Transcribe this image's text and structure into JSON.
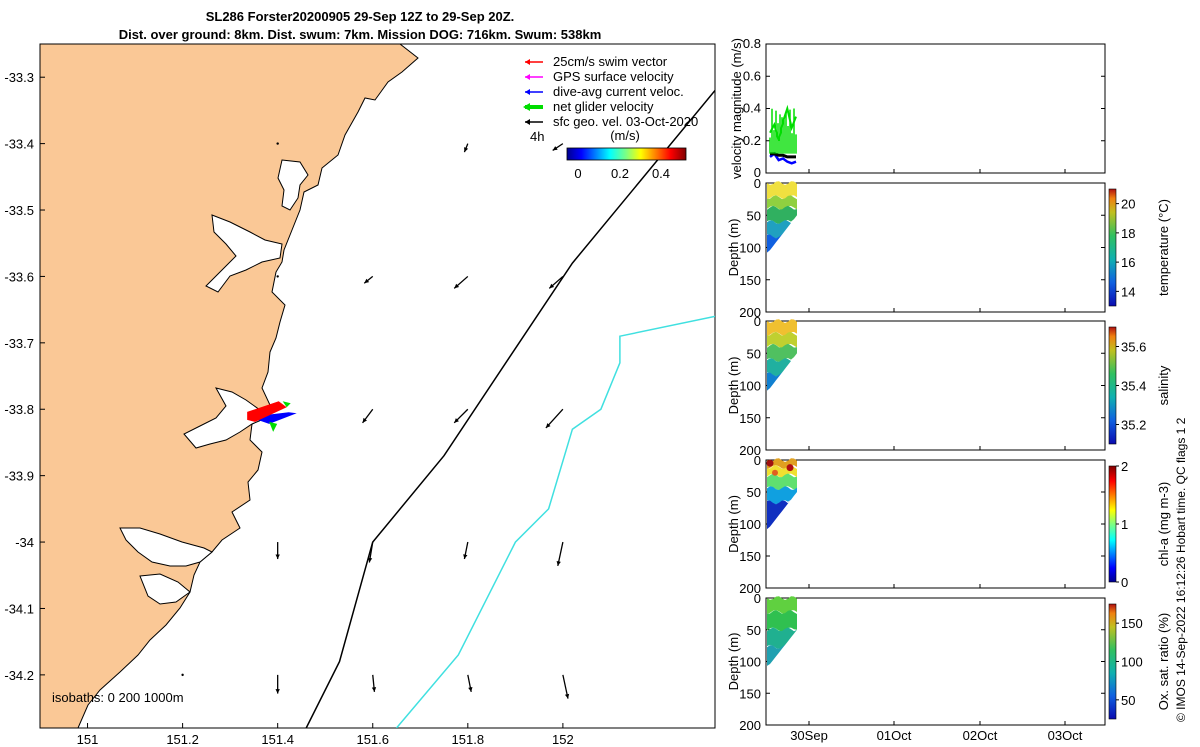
{
  "header": {
    "title_line1": "SL286 Forster20200905 29-Sep 12Z to 29-Sep 20Z.",
    "title_line2": "Dist. over ground: 8km. Dist. swum: 7km. Mission DOG: 716km. Swum: 538km"
  },
  "colors": {
    "land": "#FAC896",
    "swim_vector": "#FF0000",
    "gps_velocity": "#FF00FF",
    "dive_avg_current": "#0000FF",
    "net_glider_velocity": "#00DD00",
    "sfc_geo_vel": "#000000",
    "isobath_200": "#000000",
    "isobath_1000": "#40E0E0"
  },
  "map": {
    "legend": [
      {
        "label": "25cm/s swim vector",
        "color": "#FF0000"
      },
      {
        "label": "GPS surface velocity",
        "color": "#FF00FF"
      },
      {
        "label": "dive-avg current veloc.",
        "color": "#0000FF"
      },
      {
        "label": "net glider velocity",
        "color": "#00DD00"
      },
      {
        "label": "sfc geo. vel. 03-Oct-2020",
        "color": "#000000"
      }
    ],
    "time_label": "4h",
    "colorbar_label": "(m/s)",
    "colorbar_ticks": [
      "0",
      "0.2",
      "0.4"
    ],
    "isobaths_label": "isobaths: 0   200  1000m",
    "lon_ticks": [
      "151",
      "151.2",
      "151.4",
      "151.6",
      "151.8",
      "152"
    ],
    "lat_ticks": [
      "-33.3",
      "-33.4",
      "-33.5",
      "-33.6",
      "-33.7",
      "-33.8",
      "-33.9",
      "-34",
      "-34.1",
      "-34.2"
    ]
  },
  "chart_data": [
    {
      "type": "scatter",
      "name": "map",
      "xlim": [
        150.9,
        152.32
      ],
      "ylim": [
        -34.28,
        -33.25
      ],
      "grid": false,
      "legend_position": "top-right",
      "glider_track": [
        [
          151.34,
          -33.81
        ],
        [
          151.44,
          -33.8
        ]
      ],
      "current_arrows": [
        {
          "lon": 151.4,
          "lat": -33.4,
          "u": 0.0,
          "v": 0.0
        },
        {
          "lon": 151.8,
          "lat": -33.4,
          "u": -0.02,
          "v": -0.05
        },
        {
          "lon": 152.0,
          "lat": -33.4,
          "u": -0.06,
          "v": -0.04
        },
        {
          "lon": 151.4,
          "lat": -33.6,
          "u": 0.0,
          "v": 0.0
        },
        {
          "lon": 151.6,
          "lat": -33.6,
          "u": -0.05,
          "v": -0.04
        },
        {
          "lon": 151.8,
          "lat": -33.6,
          "u": -0.08,
          "v": -0.07
        },
        {
          "lon": 152.0,
          "lat": -33.6,
          "u": -0.08,
          "v": -0.07
        },
        {
          "lon": 151.6,
          "lat": -33.8,
          "u": -0.06,
          "v": -0.08
        },
        {
          "lon": 151.8,
          "lat": -33.8,
          "u": -0.08,
          "v": -0.08
        },
        {
          "lon": 152.0,
          "lat": -33.8,
          "u": -0.1,
          "v": -0.11
        },
        {
          "lon": 151.4,
          "lat": -34.0,
          "u": 0.0,
          "v": -0.1
        },
        {
          "lon": 151.6,
          "lat": -34.0,
          "u": -0.02,
          "v": -0.12
        },
        {
          "lon": 151.8,
          "lat": -34.0,
          "u": -0.02,
          "v": -0.1
        },
        {
          "lon": 152.0,
          "lat": -34.0,
          "u": -0.03,
          "v": -0.14
        },
        {
          "lon": 151.2,
          "lat": -34.2,
          "u": 0.0,
          "v": 0.0
        },
        {
          "lon": 151.4,
          "lat": -34.2,
          "u": 0.0,
          "v": -0.11
        },
        {
          "lon": 151.6,
          "lat": -34.2,
          "u": 0.01,
          "v": -0.1
        },
        {
          "lon": 151.8,
          "lat": -34.2,
          "u": 0.02,
          "v": -0.1
        },
        {
          "lon": 152.0,
          "lat": -34.2,
          "u": 0.03,
          "v": -0.14
        }
      ],
      "isobath_200m": [
        [
          151.46,
          -34.28
        ],
        [
          151.53,
          -34.18
        ],
        [
          151.6,
          -34.0
        ],
        [
          151.75,
          -33.87
        ],
        [
          151.88,
          -33.73
        ],
        [
          152.02,
          -33.58
        ],
        [
          152.32,
          -33.32
        ]
      ],
      "isobath_1000m": [
        [
          151.65,
          -34.28
        ],
        [
          151.78,
          -34.17
        ],
        [
          151.9,
          -34.0
        ],
        [
          151.97,
          -33.95
        ],
        [
          152.02,
          -33.83
        ],
        [
          152.08,
          -33.8
        ],
        [
          152.12,
          -33.73
        ],
        [
          152.12,
          -33.69
        ],
        [
          152.32,
          -33.66
        ]
      ]
    },
    {
      "type": "line",
      "name": "velocity",
      "ylabel": "velocity magnitude (m/s)",
      "ylim": [
        0,
        0.8
      ],
      "yticks": [
        0,
        0.2,
        0.4,
        0.6,
        0.8
      ],
      "series": [
        {
          "values": [
            0.1,
            0.12,
            0.08,
            0.09,
            0.07,
            0.06,
            0.07
          ]
        },
        {
          "values": [
            0.25,
            0.3,
            0.2,
            0.32,
            0.4,
            0.28,
            0.35
          ]
        },
        {
          "values": [
            0.12,
            0.12,
            0.11,
            0.11,
            0.1,
            0.1,
            0.1
          ]
        }
      ]
    },
    {
      "type": "heatmap",
      "name": "temperature",
      "ylabel": "Depth (m)",
      "colorbar_label": "temperature (°C)",
      "ylim": [
        0,
        200
      ],
      "yticks": [
        0,
        50,
        100,
        150,
        200
      ],
      "colorbar_ticks": [
        14,
        16,
        18,
        20
      ],
      "colorbar_range": [
        13,
        21
      ]
    },
    {
      "type": "heatmap",
      "name": "salinity",
      "ylabel": "Depth (m)",
      "colorbar_label": "salinity",
      "ylim": [
        0,
        200
      ],
      "yticks": [
        0,
        50,
        100,
        150,
        200
      ],
      "colorbar_ticks": [
        35.2,
        35.4,
        35.6
      ],
      "colorbar_range": [
        35.1,
        35.7
      ]
    },
    {
      "type": "heatmap",
      "name": "chl-a",
      "ylabel": "Depth (m)",
      "colorbar_label": "chl-a (mg m-3)",
      "ylim": [
        0,
        200
      ],
      "yticks": [
        0,
        50,
        100,
        150,
        200
      ],
      "colorbar_ticks": [
        0,
        1,
        2
      ],
      "colorbar_range": [
        0,
        2
      ]
    },
    {
      "type": "heatmap",
      "name": "oxygen",
      "ylabel": "Depth (m)",
      "colorbar_label": "Ox. sat. ratio (%)",
      "ylim": [
        0,
        200
      ],
      "yticks": [
        0,
        50,
        100,
        150,
        200
      ],
      "colorbar_ticks": [
        50,
        100,
        150
      ],
      "colorbar_range": [
        25,
        175
      ]
    }
  ],
  "time_axis": {
    "ticks": [
      "30Sep",
      "01Oct",
      "02Oct",
      "03Oct"
    ]
  },
  "footer": {
    "stamp": "© IMOS 14-Sep-2022 16:12:26 Hobart time. QC flags 1  2"
  }
}
